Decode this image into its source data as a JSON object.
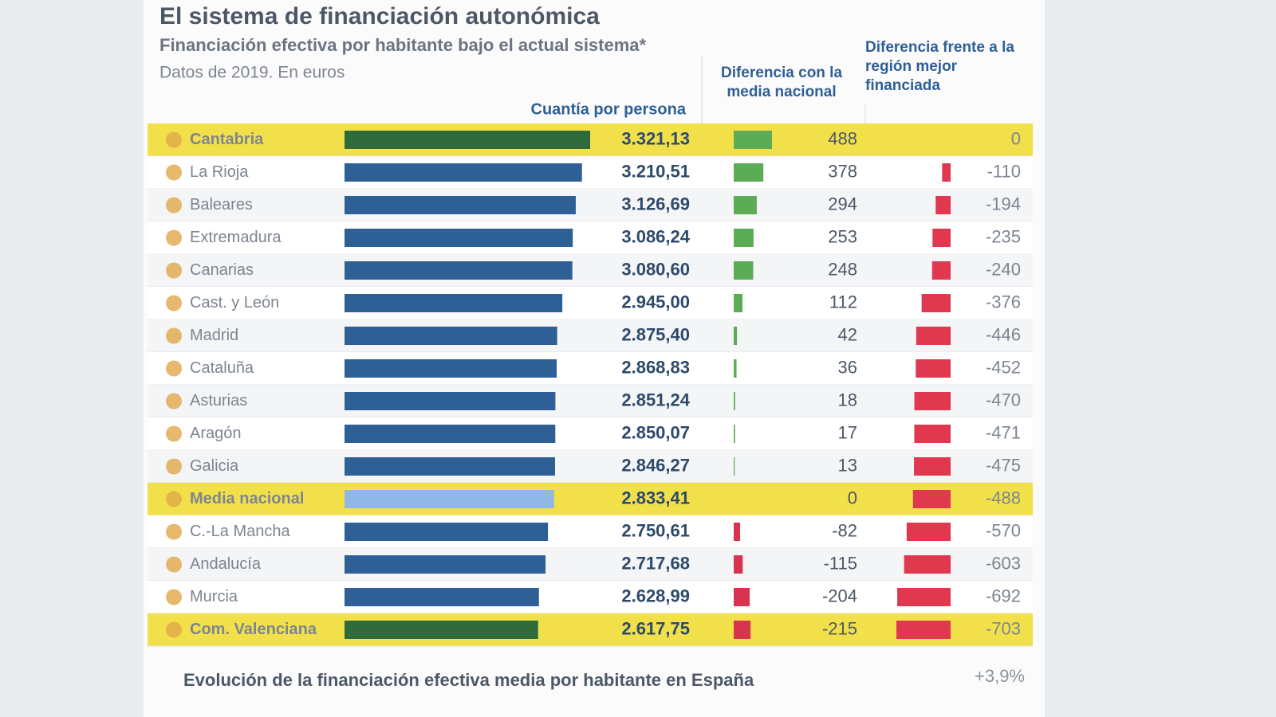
{
  "chart_data": {
    "type": "bar-table",
    "title": "El sistema de financiación autonómica",
    "subtitle": "Financiación efectiva por habitante bajo el actual sistema*",
    "note": "Datos de 2019. En euros",
    "categories": [
      "Cantabria",
      "La Rioja",
      "Baleares",
      "Extremadura",
      "Canarias",
      "Cast. y León",
      "Madrid",
      "Cataluña",
      "Asturias",
      "Aragón",
      "Galicia",
      "Media nacional",
      "C.-La Mancha",
      "Andalucía",
      "Murcia",
      "Com. Valenciana"
    ],
    "row_colors": [
      "#f2e04a",
      "#ffffff",
      "#f4f5f7",
      "#ffffff",
      "#f4f5f7",
      "#ffffff",
      "#f4f5f7",
      "#ffffff",
      "#f4f5f7",
      "#ffffff",
      "#f4f5f7",
      "#f2e04a",
      "#ffffff",
      "#f4f5f7",
      "#ffffff",
      "#f2e04a"
    ],
    "series": [
      {
        "name": "Cuantía por persona",
        "values": [
          3321.13,
          3210.51,
          3126.69,
          3086.24,
          3080.6,
          2945.0,
          2875.4,
          2868.83,
          2851.24,
          2850.07,
          2846.27,
          2833.41,
          2750.61,
          2717.68,
          2628.99,
          2617.75
        ],
        "value_labels": [
          "3.321,13",
          "3.210,51",
          "3.126,69",
          "3.086,24",
          "3.080,60",
          "2.945,00",
          "2.875,40",
          "2.868,83",
          "2.851,24",
          "2.850,07",
          "2.846,27",
          "2.833,41",
          "2.750,61",
          "2.717,68",
          "2.628,99",
          "2.617,75"
        ],
        "bar_colors": [
          "#2f6b3a",
          "#2e5f95",
          "#2e5f95",
          "#2e5f95",
          "#2e5f95",
          "#2e5f95",
          "#2e5f95",
          "#2e5f95",
          "#2e5f95",
          "#2e5f95",
          "#2e5f95",
          "#8fb8e6",
          "#2e5f95",
          "#2e5f95",
          "#2e5f95",
          "#2f6b3a"
        ]
      },
      {
        "name": "Diferencia con la media nacional",
        "values": [
          488,
          378,
          294,
          253,
          248,
          112,
          42,
          36,
          18,
          17,
          13,
          0,
          -82,
          -115,
          -204,
          -215
        ],
        "color": "#5cab55",
        "negative_color": "#d8344f"
      },
      {
        "name": "Diferencia frente a la región mejor financiada",
        "values": [
          0,
          -110,
          -194,
          -235,
          -240,
          -376,
          -446,
          -452,
          -470,
          -471,
          -475,
          -488,
          -570,
          -603,
          -692,
          -703
        ],
        "color": "#e0384f"
      }
    ],
    "footer_title": "Evolución de la financiación efectiva media por habitante en España",
    "footer_annotation": "+3,9%"
  }
}
